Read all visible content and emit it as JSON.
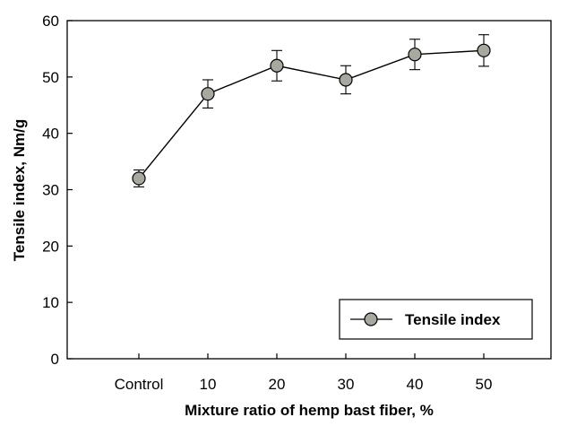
{
  "chart_data": {
    "type": "line",
    "title": "",
    "xlabel": "Mixture ratio of hemp bast fiber, %",
    "ylabel": "Tensile index, Nm/g",
    "categories": [
      "Control",
      "10",
      "20",
      "30",
      "40",
      "50"
    ],
    "ylim": [
      0,
      60
    ],
    "yticks": [
      "0",
      "10",
      "20",
      "30",
      "40",
      "50",
      "60"
    ],
    "series": [
      {
        "name": "Tensile index",
        "values": [
          32.0,
          47.0,
          52.0,
          49.5,
          54.0,
          54.7
        ],
        "errors": [
          1.5,
          2.5,
          2.7,
          2.5,
          2.7,
          2.8
        ],
        "marker_color": "#a8a8a0",
        "line_color": "#000000"
      }
    ],
    "legend": {
      "position": "bottom-right",
      "label": "Tensile index"
    },
    "grid": false
  }
}
